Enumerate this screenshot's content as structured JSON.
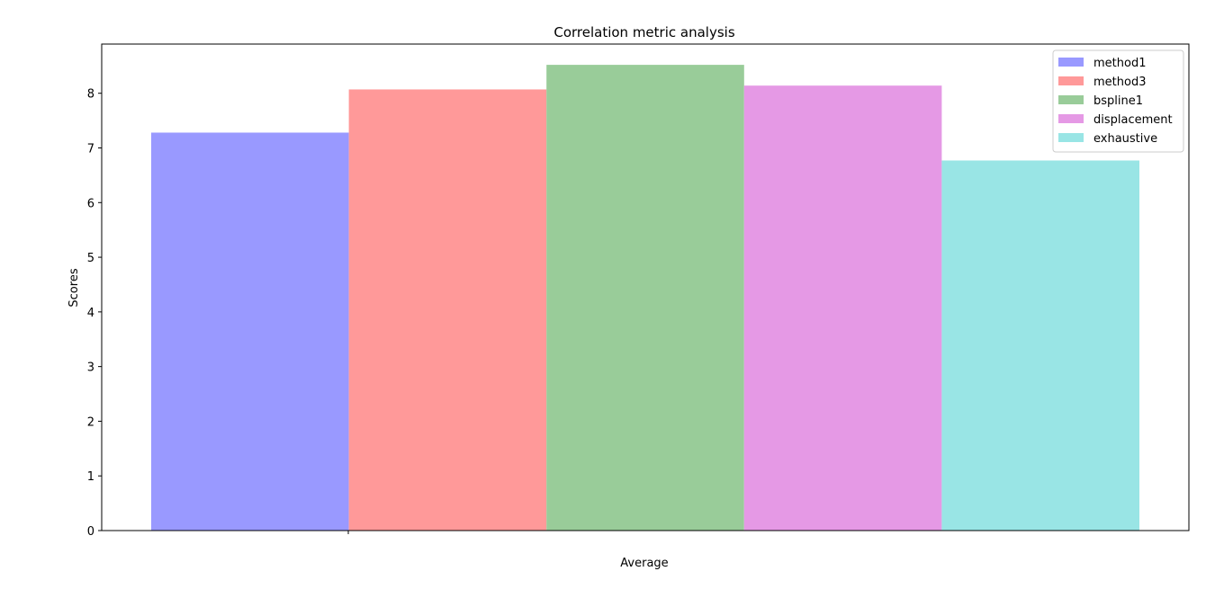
{
  "chart_data": {
    "type": "bar",
    "title": "Correlation metric analysis",
    "xlabel": "Average",
    "ylabel": "Scores",
    "categories": [
      "Average"
    ],
    "ylim": [
      0,
      8.9
    ],
    "yticks": [
      "0",
      "1",
      "2",
      "3",
      "4",
      "5",
      "6",
      "7",
      "8"
    ],
    "grid": false,
    "legend_position": "top-right",
    "series": [
      {
        "name": "method1",
        "values": [
          7.28
        ],
        "color": "#9999ff"
      },
      {
        "name": "method3",
        "values": [
          8.07
        ],
        "color": "#ff9999"
      },
      {
        "name": "bspline1",
        "values": [
          8.52
        ],
        "color": "#99cc99"
      },
      {
        "name": "displacement",
        "values": [
          8.14
        ],
        "color": "#e599e5"
      },
      {
        "name": "exhaustive",
        "values": [
          6.77
        ],
        "color": "#99e5e5"
      }
    ]
  }
}
